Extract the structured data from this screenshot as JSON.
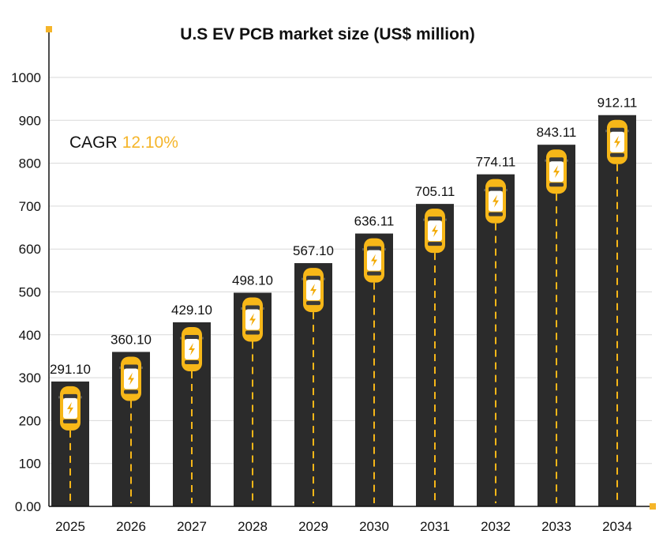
{
  "chart_data": {
    "type": "bar",
    "title": "U.S EV PCB market size (US$ million)",
    "categories": [
      "2025",
      "2026",
      "2027",
      "2028",
      "2029",
      "2030",
      "2031",
      "2032",
      "2033",
      "2034"
    ],
    "values": [
      291.1,
      360.1,
      429.1,
      498.1,
      567.1,
      636.11,
      705.11,
      774.11,
      843.11,
      912.11
    ],
    "value_labels": [
      "291.10",
      "360.10",
      "429.10",
      "498.10",
      "567.10",
      "636.11",
      "705.11",
      "774.11",
      "843.11",
      "912.11"
    ],
    "y_ticks": [
      "0.00",
      "100",
      "200",
      "300",
      "400",
      "500",
      "600",
      "700",
      "800",
      "900",
      "1000"
    ],
    "ylim": [
      0,
      1000
    ],
    "grid": true,
    "xlabel": "",
    "ylabel": ""
  },
  "annotation": {
    "cagr_label": "CAGR",
    "cagr_value": "12.10%"
  },
  "colors": {
    "bar": "#2b2b2b",
    "lane_dash": "#f7b718",
    "car_body": "#f7b718",
    "accent": "#f5b52a",
    "grid": "#d9d9d9",
    "axis": "#111111",
    "text": "#111111"
  },
  "icons": {
    "bar_marker": "car-icon",
    "bolt": "lightning-bolt-icon"
  }
}
